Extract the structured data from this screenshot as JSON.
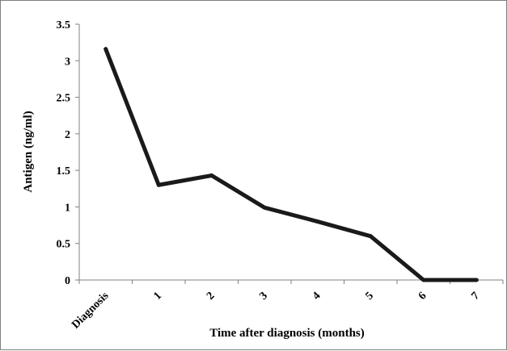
{
  "chart_data": {
    "type": "line",
    "title": "",
    "xlabel": "Time after diagnosis (months)",
    "ylabel": "Antigen (ng/ml)",
    "categories": [
      "Diagnosis",
      "1",
      "2",
      "3",
      "4",
      "5",
      "6",
      "7"
    ],
    "series": [
      {
        "values": [
          3.16,
          1.3,
          1.43,
          0.99,
          0.8,
          0.6,
          0.0,
          0.0
        ],
        "color": "#1a1a1a"
      }
    ],
    "y_ticks": [
      "0",
      "0.5",
      "1",
      "1.5",
      "2",
      "2.5",
      "3",
      "3.5"
    ],
    "ylim": [
      0,
      3.5
    ],
    "grid": false,
    "legend": "none"
  }
}
